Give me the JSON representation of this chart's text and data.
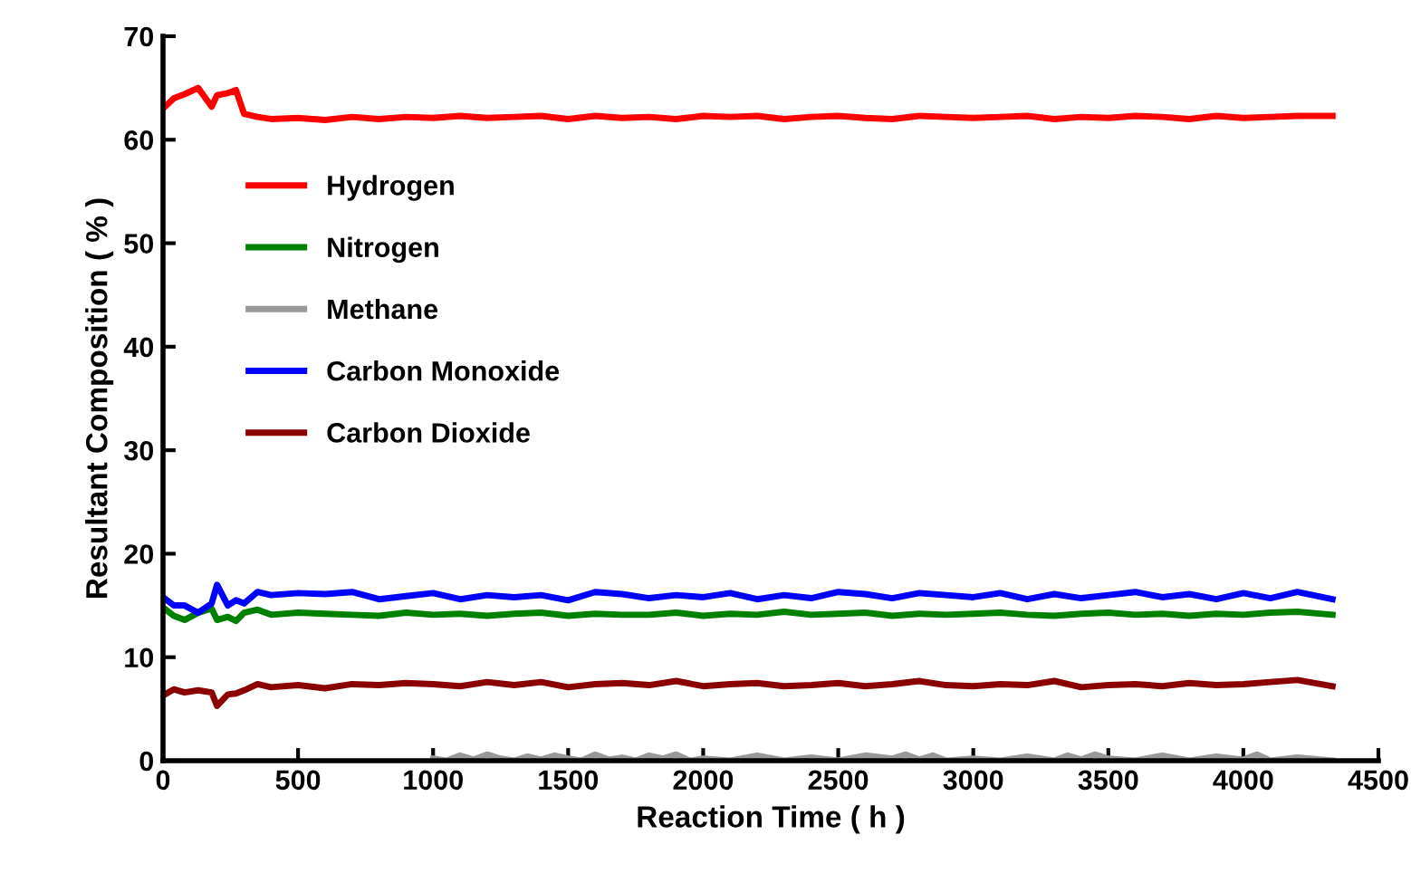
{
  "chart_data": {
    "type": "line",
    "xlabel": "Reaction Time ( h )",
    "ylabel": "Resultant Composition ( % )",
    "xlim": [
      0,
      4500
    ],
    "xticks": [
      0,
      500,
      1000,
      1500,
      2000,
      2500,
      3000,
      3500,
      4000,
      4500
    ],
    "ylim": [
      0,
      70
    ],
    "yticks": [
      0,
      10,
      20,
      30,
      40,
      50,
      60,
      70
    ],
    "grid": false,
    "legend": "left",
    "marker": "none",
    "line_style": "solid",
    "series": [
      {
        "name": "Hydrogen",
        "color": "#ff0000",
        "x": [
          0,
          40,
          80,
          130,
          180,
          200,
          240,
          270,
          300,
          350,
          400,
          500,
          600,
          700,
          800,
          900,
          1000,
          1100,
          1200,
          1300,
          1400,
          1500,
          1600,
          1700,
          1800,
          1900,
          2000,
          2100,
          2200,
          2300,
          2400,
          2500,
          2600,
          2700,
          2800,
          2900,
          3000,
          3100,
          3200,
          3300,
          3400,
          3500,
          3600,
          3700,
          3800,
          3900,
          4000,
          4100,
          4200,
          4330
        ],
        "values": [
          63.0,
          64.0,
          64.4,
          65.0,
          63.2,
          64.3,
          64.5,
          64.8,
          62.5,
          62.2,
          62.0,
          62.1,
          61.9,
          62.2,
          62.0,
          62.2,
          62.1,
          62.3,
          62.1,
          62.2,
          62.3,
          62.0,
          62.3,
          62.1,
          62.2,
          62.0,
          62.3,
          62.2,
          62.3,
          62.0,
          62.2,
          62.3,
          62.1,
          62.0,
          62.3,
          62.2,
          62.1,
          62.2,
          62.3,
          62.0,
          62.2,
          62.1,
          62.3,
          62.2,
          62.0,
          62.3,
          62.1,
          62.2,
          62.3,
          62.3
        ]
      },
      {
        "name": "Nitrogen",
        "color": "#008000",
        "x": [
          0,
          40,
          80,
          130,
          180,
          200,
          240,
          270,
          300,
          350,
          400,
          500,
          600,
          700,
          800,
          900,
          1000,
          1100,
          1200,
          1300,
          1400,
          1500,
          1600,
          1700,
          1800,
          1900,
          2000,
          2100,
          2200,
          2300,
          2400,
          2500,
          2600,
          2700,
          2800,
          2900,
          3000,
          3100,
          3200,
          3300,
          3400,
          3500,
          3600,
          3700,
          3800,
          3900,
          4000,
          4100,
          4200,
          4330
        ],
        "values": [
          14.8,
          14.0,
          13.6,
          14.3,
          14.7,
          13.6,
          13.9,
          13.5,
          14.3,
          14.6,
          14.1,
          14.3,
          14.2,
          14.1,
          14.0,
          14.3,
          14.1,
          14.2,
          14.0,
          14.2,
          14.3,
          14.0,
          14.2,
          14.1,
          14.1,
          14.3,
          14.0,
          14.2,
          14.1,
          14.4,
          14.1,
          14.2,
          14.3,
          14.0,
          14.2,
          14.1,
          14.2,
          14.3,
          14.1,
          14.0,
          14.2,
          14.3,
          14.1,
          14.2,
          14.0,
          14.2,
          14.1,
          14.3,
          14.4,
          14.1
        ]
      },
      {
        "name": "Methane",
        "color": "#999999",
        "x": [
          1000,
          1050,
          1100,
          1150,
          1200,
          1250,
          1300,
          1350,
          1400,
          1450,
          1500,
          1550,
          1600,
          1650,
          1700,
          1750,
          1800,
          1850,
          1900,
          1950,
          2000,
          2100,
          2200,
          2300,
          2400,
          2500,
          2600,
          2700,
          2750,
          2800,
          2850,
          2900,
          3000,
          3100,
          3200,
          3300,
          3350,
          3400,
          3450,
          3500,
          3600,
          3700,
          3800,
          3900,
          4000,
          4050,
          4100,
          4200,
          4330
        ],
        "values": [
          0.2,
          0.0,
          0.5,
          0.1,
          0.6,
          0.2,
          0.0,
          0.4,
          0.1,
          0.5,
          0.2,
          0.0,
          0.6,
          0.1,
          0.3,
          0.0,
          0.5,
          0.2,
          0.6,
          0.0,
          0.2,
          0.0,
          0.5,
          0.0,
          0.3,
          0.0,
          0.5,
          0.2,
          0.6,
          0.1,
          0.5,
          0.0,
          0.2,
          0.0,
          0.4,
          0.0,
          0.5,
          0.1,
          0.6,
          0.2,
          0.0,
          0.5,
          0.0,
          0.4,
          0.1,
          0.6,
          0.0,
          0.3,
          0.0
        ]
      },
      {
        "name": "Carbon Monoxide",
        "color": "#0000ff",
        "x": [
          0,
          40,
          80,
          130,
          180,
          200,
          240,
          270,
          300,
          350,
          400,
          500,
          600,
          700,
          800,
          900,
          1000,
          1100,
          1200,
          1300,
          1400,
          1500,
          1600,
          1700,
          1800,
          1900,
          2000,
          2100,
          2200,
          2300,
          2400,
          2500,
          2600,
          2700,
          2800,
          2900,
          3000,
          3100,
          3200,
          3300,
          3400,
          3500,
          3600,
          3700,
          3800,
          3900,
          4000,
          4100,
          4200,
          4330
        ],
        "values": [
          15.8,
          15.0,
          15.0,
          14.3,
          15.2,
          17.0,
          15.0,
          15.5,
          15.2,
          16.3,
          16.0,
          16.2,
          16.1,
          16.3,
          15.6,
          15.9,
          16.2,
          15.6,
          16.0,
          15.8,
          16.0,
          15.5,
          16.3,
          16.1,
          15.7,
          16.0,
          15.8,
          16.2,
          15.6,
          16.0,
          15.7,
          16.3,
          16.1,
          15.7,
          16.2,
          16.0,
          15.8,
          16.2,
          15.6,
          16.1,
          15.7,
          16.0,
          16.3,
          15.8,
          16.1,
          15.6,
          16.2,
          15.7,
          16.3,
          15.6
        ]
      },
      {
        "name": "Carbon Dioxide",
        "color": "#8b0000",
        "x": [
          0,
          40,
          80,
          130,
          180,
          200,
          240,
          270,
          300,
          350,
          400,
          500,
          600,
          700,
          800,
          900,
          1000,
          1100,
          1200,
          1300,
          1400,
          1500,
          1600,
          1700,
          1800,
          1900,
          2000,
          2100,
          2200,
          2300,
          2400,
          2500,
          2600,
          2700,
          2800,
          2900,
          3000,
          3100,
          3200,
          3300,
          3400,
          3500,
          3600,
          3700,
          3800,
          3900,
          4000,
          4100,
          4200,
          4330
        ],
        "values": [
          6.3,
          6.9,
          6.6,
          6.8,
          6.6,
          5.3,
          6.4,
          6.5,
          6.8,
          7.4,
          7.1,
          7.3,
          7.0,
          7.4,
          7.3,
          7.5,
          7.4,
          7.2,
          7.6,
          7.3,
          7.6,
          7.1,
          7.4,
          7.5,
          7.3,
          7.7,
          7.2,
          7.4,
          7.5,
          7.2,
          7.3,
          7.5,
          7.2,
          7.4,
          7.7,
          7.3,
          7.2,
          7.4,
          7.3,
          7.7,
          7.1,
          7.3,
          7.4,
          7.2,
          7.5,
          7.3,
          7.4,
          7.6,
          7.8,
          7.2
        ]
      }
    ]
  }
}
